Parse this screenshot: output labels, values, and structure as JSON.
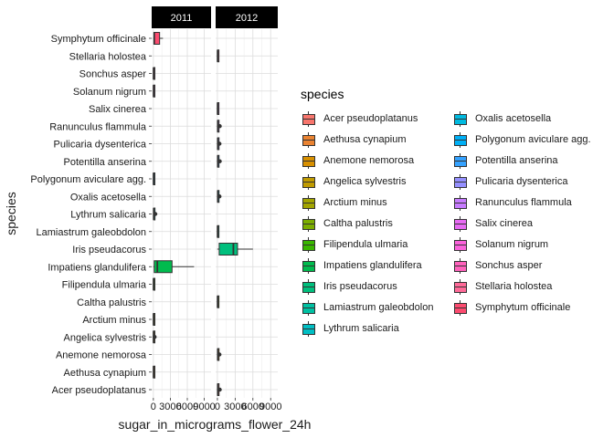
{
  "chart_data": {
    "type": "boxplot",
    "facets": [
      "2011",
      "2012"
    ],
    "xlabel": "sugar_in_micrograms_flower_24h",
    "ylabel": "species",
    "x_ticks": [
      "0",
      "3000",
      "6000",
      "9000"
    ],
    "xlim": [
      -300,
      10200
    ],
    "categories": [
      "Acer pseudoplatanus",
      "Aethusa cynapium",
      "Anemone nemorosa",
      "Angelica sylvestris",
      "Arctium minus",
      "Caltha palustris",
      "Filipendula ulmaria",
      "Impatiens glandulifera",
      "Iris pseudacorus",
      "Lamiastrum galeobdolon",
      "Lythrum salicaria",
      "Oxalis acetosella",
      "Polygonum aviculare agg.",
      "Potentilla anserina",
      "Pulicaria dysenterica",
      "Ranunculus flammula",
      "Salix cinerea",
      "Solanum nigrum",
      "Sonchus asper",
      "Stellaria holostea",
      "Symphytum officinale"
    ],
    "legend_title": "species",
    "colors": [
      "#F8766D",
      "#EA8331",
      "#D89000",
      "#C09B00",
      "#A3A500",
      "#7CAE00",
      "#39B600",
      "#00BB4E",
      "#00BF7D",
      "#00C1A3",
      "#00BFC4",
      "#00BAE0",
      "#00B0F6",
      "#35A2FF",
      "#9590FF",
      "#C77CFF",
      "#E76BF3",
      "#FA62DB",
      "#FF62BC",
      "#FF6A98",
      "#FC4B6F"
    ],
    "panels": [
      {
        "year": "2011",
        "boxes": [
          {
            "species": "Symphytum officinale",
            "min": 0,
            "q1": 100,
            "median": 150,
            "q3": 1100,
            "max": 1700
          },
          {
            "species": "Sonchus asper",
            "min": 0,
            "q1": 10,
            "median": 30,
            "q3": 60,
            "max": 100
          },
          {
            "species": "Solanum nigrum",
            "min": 0,
            "q1": 10,
            "median": 30,
            "q3": 60,
            "max": 100
          },
          {
            "species": "Polygonum aviculare agg.",
            "min": 0,
            "q1": 10,
            "median": 30,
            "q3": 60,
            "max": 100
          },
          {
            "species": "Lythrum salicaria",
            "min": 0,
            "q1": 30,
            "median": 60,
            "q3": 120,
            "max": 200,
            "outliers": [
              350
            ]
          },
          {
            "species": "Impatiens glandulifera",
            "min": 0,
            "q1": 150,
            "median": 700,
            "q3": 3300,
            "max": 7200
          },
          {
            "species": "Filipendula ulmaria",
            "min": 0,
            "q1": 10,
            "median": 30,
            "q3": 60,
            "max": 100
          },
          {
            "species": "Arctium minus",
            "min": 0,
            "q1": 10,
            "median": 30,
            "q3": 60,
            "max": 100
          },
          {
            "species": "Angelica sylvestris",
            "min": 0,
            "q1": 10,
            "median": 30,
            "q3": 60,
            "max": 100,
            "outliers": [
              230
            ]
          },
          {
            "species": "Aethusa cynapium",
            "min": 0,
            "q1": 10,
            "median": 30,
            "q3": 60,
            "max": 100
          }
        ]
      },
      {
        "year": "2012",
        "boxes": [
          {
            "species": "Stellaria holostea",
            "min": 0,
            "q1": 10,
            "median": 30,
            "q3": 60,
            "max": 100
          },
          {
            "species": "Salix cinerea",
            "min": 0,
            "q1": 10,
            "median": 30,
            "q3": 60,
            "max": 100
          },
          {
            "species": "Ranunculus flammula",
            "min": 0,
            "q1": 30,
            "median": 60,
            "q3": 150,
            "max": 250,
            "outliers": [
              400
            ]
          },
          {
            "species": "Pulicaria dysenterica",
            "min": 0,
            "q1": 30,
            "median": 60,
            "q3": 150,
            "max": 250,
            "outliers": [
              350
            ]
          },
          {
            "species": "Potentilla anserina",
            "min": 0,
            "q1": 30,
            "median": 60,
            "q3": 150,
            "max": 250,
            "outliers": [
              400
            ]
          },
          {
            "species": "Oxalis acetosella",
            "min": 0,
            "q1": 30,
            "median": 60,
            "q3": 150,
            "max": 250,
            "outliers": [
              350
            ]
          },
          {
            "species": "Lamiastrum galeobdolon",
            "min": 0,
            "q1": 10,
            "median": 30,
            "q3": 60,
            "max": 100
          },
          {
            "species": "Iris pseudacorus",
            "min": 0,
            "q1": 300,
            "median": 2700,
            "q3": 3400,
            "max": 6000
          },
          {
            "species": "Caltha palustris",
            "min": 0,
            "q1": 10,
            "median": 30,
            "q3": 60,
            "max": 100
          },
          {
            "species": "Anemone nemorosa",
            "min": 0,
            "q1": 30,
            "median": 60,
            "q3": 150,
            "max": 250,
            "outliers": [
              350
            ]
          },
          {
            "species": "Acer pseudoplatanus",
            "min": 0,
            "q1": 30,
            "median": 60,
            "q3": 150,
            "max": 250,
            "outliers": [
              400
            ]
          }
        ]
      }
    ],
    "grid": true,
    "legend_position": "right"
  }
}
